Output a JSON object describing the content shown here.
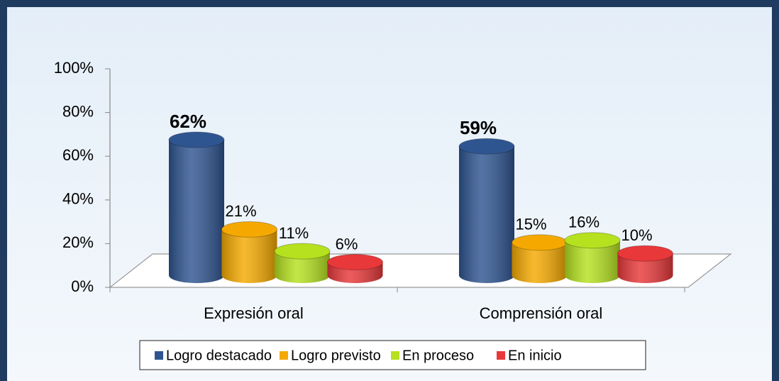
{
  "chart_data": {
    "type": "bar3d",
    "categories": [
      "Expresión oral",
      "Comprensión oral"
    ],
    "series": [
      {
        "name": "Logro destacado",
        "color": "#2f5591",
        "values": [
          62,
          59
        ],
        "value_labels": [
          "62%",
          "59%"
        ]
      },
      {
        "name": "Logro previsto",
        "color": "#f5a900",
        "values": [
          21,
          15
        ],
        "value_labels": [
          "21%",
          "15%"
        ]
      },
      {
        "name": "En proceso",
        "color": "#b5e11f",
        "values": [
          11,
          16
        ],
        "value_labels": [
          "11%",
          "16%"
        ]
      },
      {
        "name": "En inicio",
        "color": "#e8383a",
        "values": [
          6,
          10
        ],
        "value_labels": [
          "6%",
          "10%"
        ]
      }
    ],
    "ylim": [
      0,
      100
    ],
    "yticks": [
      {
        "value": 0,
        "label": "0%"
      },
      {
        "value": 20,
        "label": "20%"
      },
      {
        "value": 40,
        "label": "40%"
      },
      {
        "value": 60,
        "label": "60%"
      },
      {
        "value": 80,
        "label": "80%"
      },
      {
        "value": 100,
        "label": "100%"
      }
    ],
    "legend": "bottom"
  }
}
